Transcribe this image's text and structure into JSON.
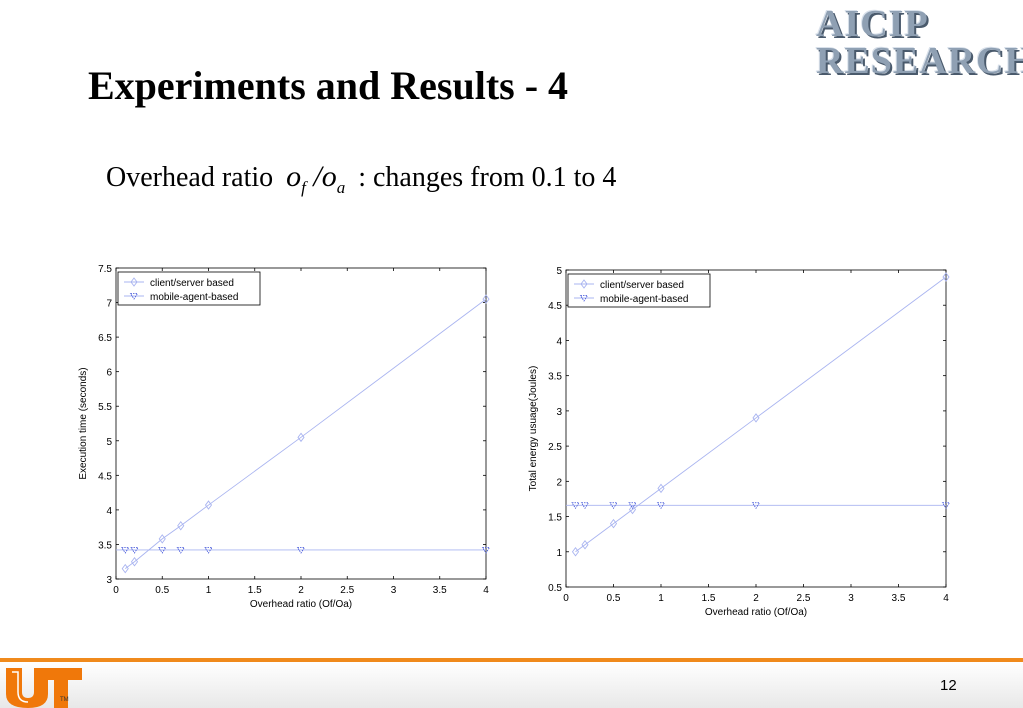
{
  "slide": {
    "title": "Experiments and Results - 4",
    "logo_line1": "AICIP",
    "logo_line2": "RESEARCH",
    "subtitle_before": "Overhead ratio",
    "formula_o1": "o",
    "formula_sub1": "f",
    "formula_slash": "/",
    "formula_o2": "o",
    "formula_sub2": "a",
    "subtitle_after": ": changes from 0.1 to 4",
    "page_number": "12"
  },
  "colors": {
    "series_line": "#a9b4f0",
    "marker": "#3b4fd8",
    "footer_accent": "#f08a1c",
    "ut_orange": "#f0780a"
  },
  "chart_data": [
    {
      "type": "line",
      "xlabel": "Overhead ratio (Of/Oa)",
      "ylabel": "Execution time (seconds)",
      "xlim": [
        0,
        4
      ],
      "ylim": [
        3,
        7.5
      ],
      "xticks": [
        0,
        0.5,
        1,
        1.5,
        2,
        2.5,
        3,
        3.5,
        4
      ],
      "xtick_labels": [
        "0",
        "0.5",
        "1",
        "1.5",
        "2",
        "2.5",
        "3",
        "3.5",
        "4"
      ],
      "yticks": [
        3,
        3.5,
        4,
        4.5,
        5,
        5.5,
        6,
        6.5,
        7,
        7.5
      ],
      "ytick_labels": [
        "3",
        "3.5",
        "4",
        "4.5",
        "5",
        "5.5",
        "6",
        "6.5",
        "7",
        "7.5"
      ],
      "legend_position": "top-left",
      "series": [
        {
          "name": "client/server based",
          "marker": "diamond",
          "x": [
            0.1,
            0.2,
            0.5,
            0.7,
            1,
            2,
            4
          ],
          "y": [
            3.15,
            3.25,
            3.58,
            3.77,
            4.07,
            5.05,
            7.05
          ]
        },
        {
          "name": "mobile-agent-based",
          "marker": "triangle-down",
          "x": [
            0.1,
            0.2,
            0.5,
            0.7,
            1,
            2,
            4
          ],
          "y": [
            3.42,
            3.42,
            3.42,
            3.42,
            3.42,
            3.42,
            3.42
          ]
        }
      ]
    },
    {
      "type": "line",
      "xlabel": "Overhead ratio (Of/Oa)",
      "ylabel": "Total energy usuage(Joules)",
      "xlim": [
        0,
        4
      ],
      "ylim": [
        0.5,
        5
      ],
      "xticks": [
        0,
        0.5,
        1,
        1.5,
        2,
        2.5,
        3,
        3.5,
        4
      ],
      "xtick_labels": [
        "0",
        "0.5",
        "1",
        "1.5",
        "2",
        "2.5",
        "3",
        "3.5",
        "4"
      ],
      "yticks": [
        0.5,
        1,
        1.5,
        2,
        2.5,
        3,
        3.5,
        4,
        4.5,
        5
      ],
      "ytick_labels": [
        "0.5",
        "1",
        "1.5",
        "2",
        "2.5",
        "3",
        "3.5",
        "4",
        "4.5",
        "5"
      ],
      "legend_position": "top-left",
      "series": [
        {
          "name": "client/server based",
          "marker": "diamond",
          "x": [
            0.1,
            0.2,
            0.5,
            0.7,
            1,
            2,
            4
          ],
          "y": [
            1.0,
            1.1,
            1.4,
            1.6,
            1.9,
            2.9,
            4.9
          ]
        },
        {
          "name": "mobile-agent-based",
          "marker": "triangle-down",
          "x": [
            0.1,
            0.2,
            0.5,
            0.7,
            1,
            2,
            4
          ],
          "y": [
            1.66,
            1.66,
            1.66,
            1.66,
            1.66,
            1.66,
            1.66
          ]
        }
      ]
    }
  ]
}
